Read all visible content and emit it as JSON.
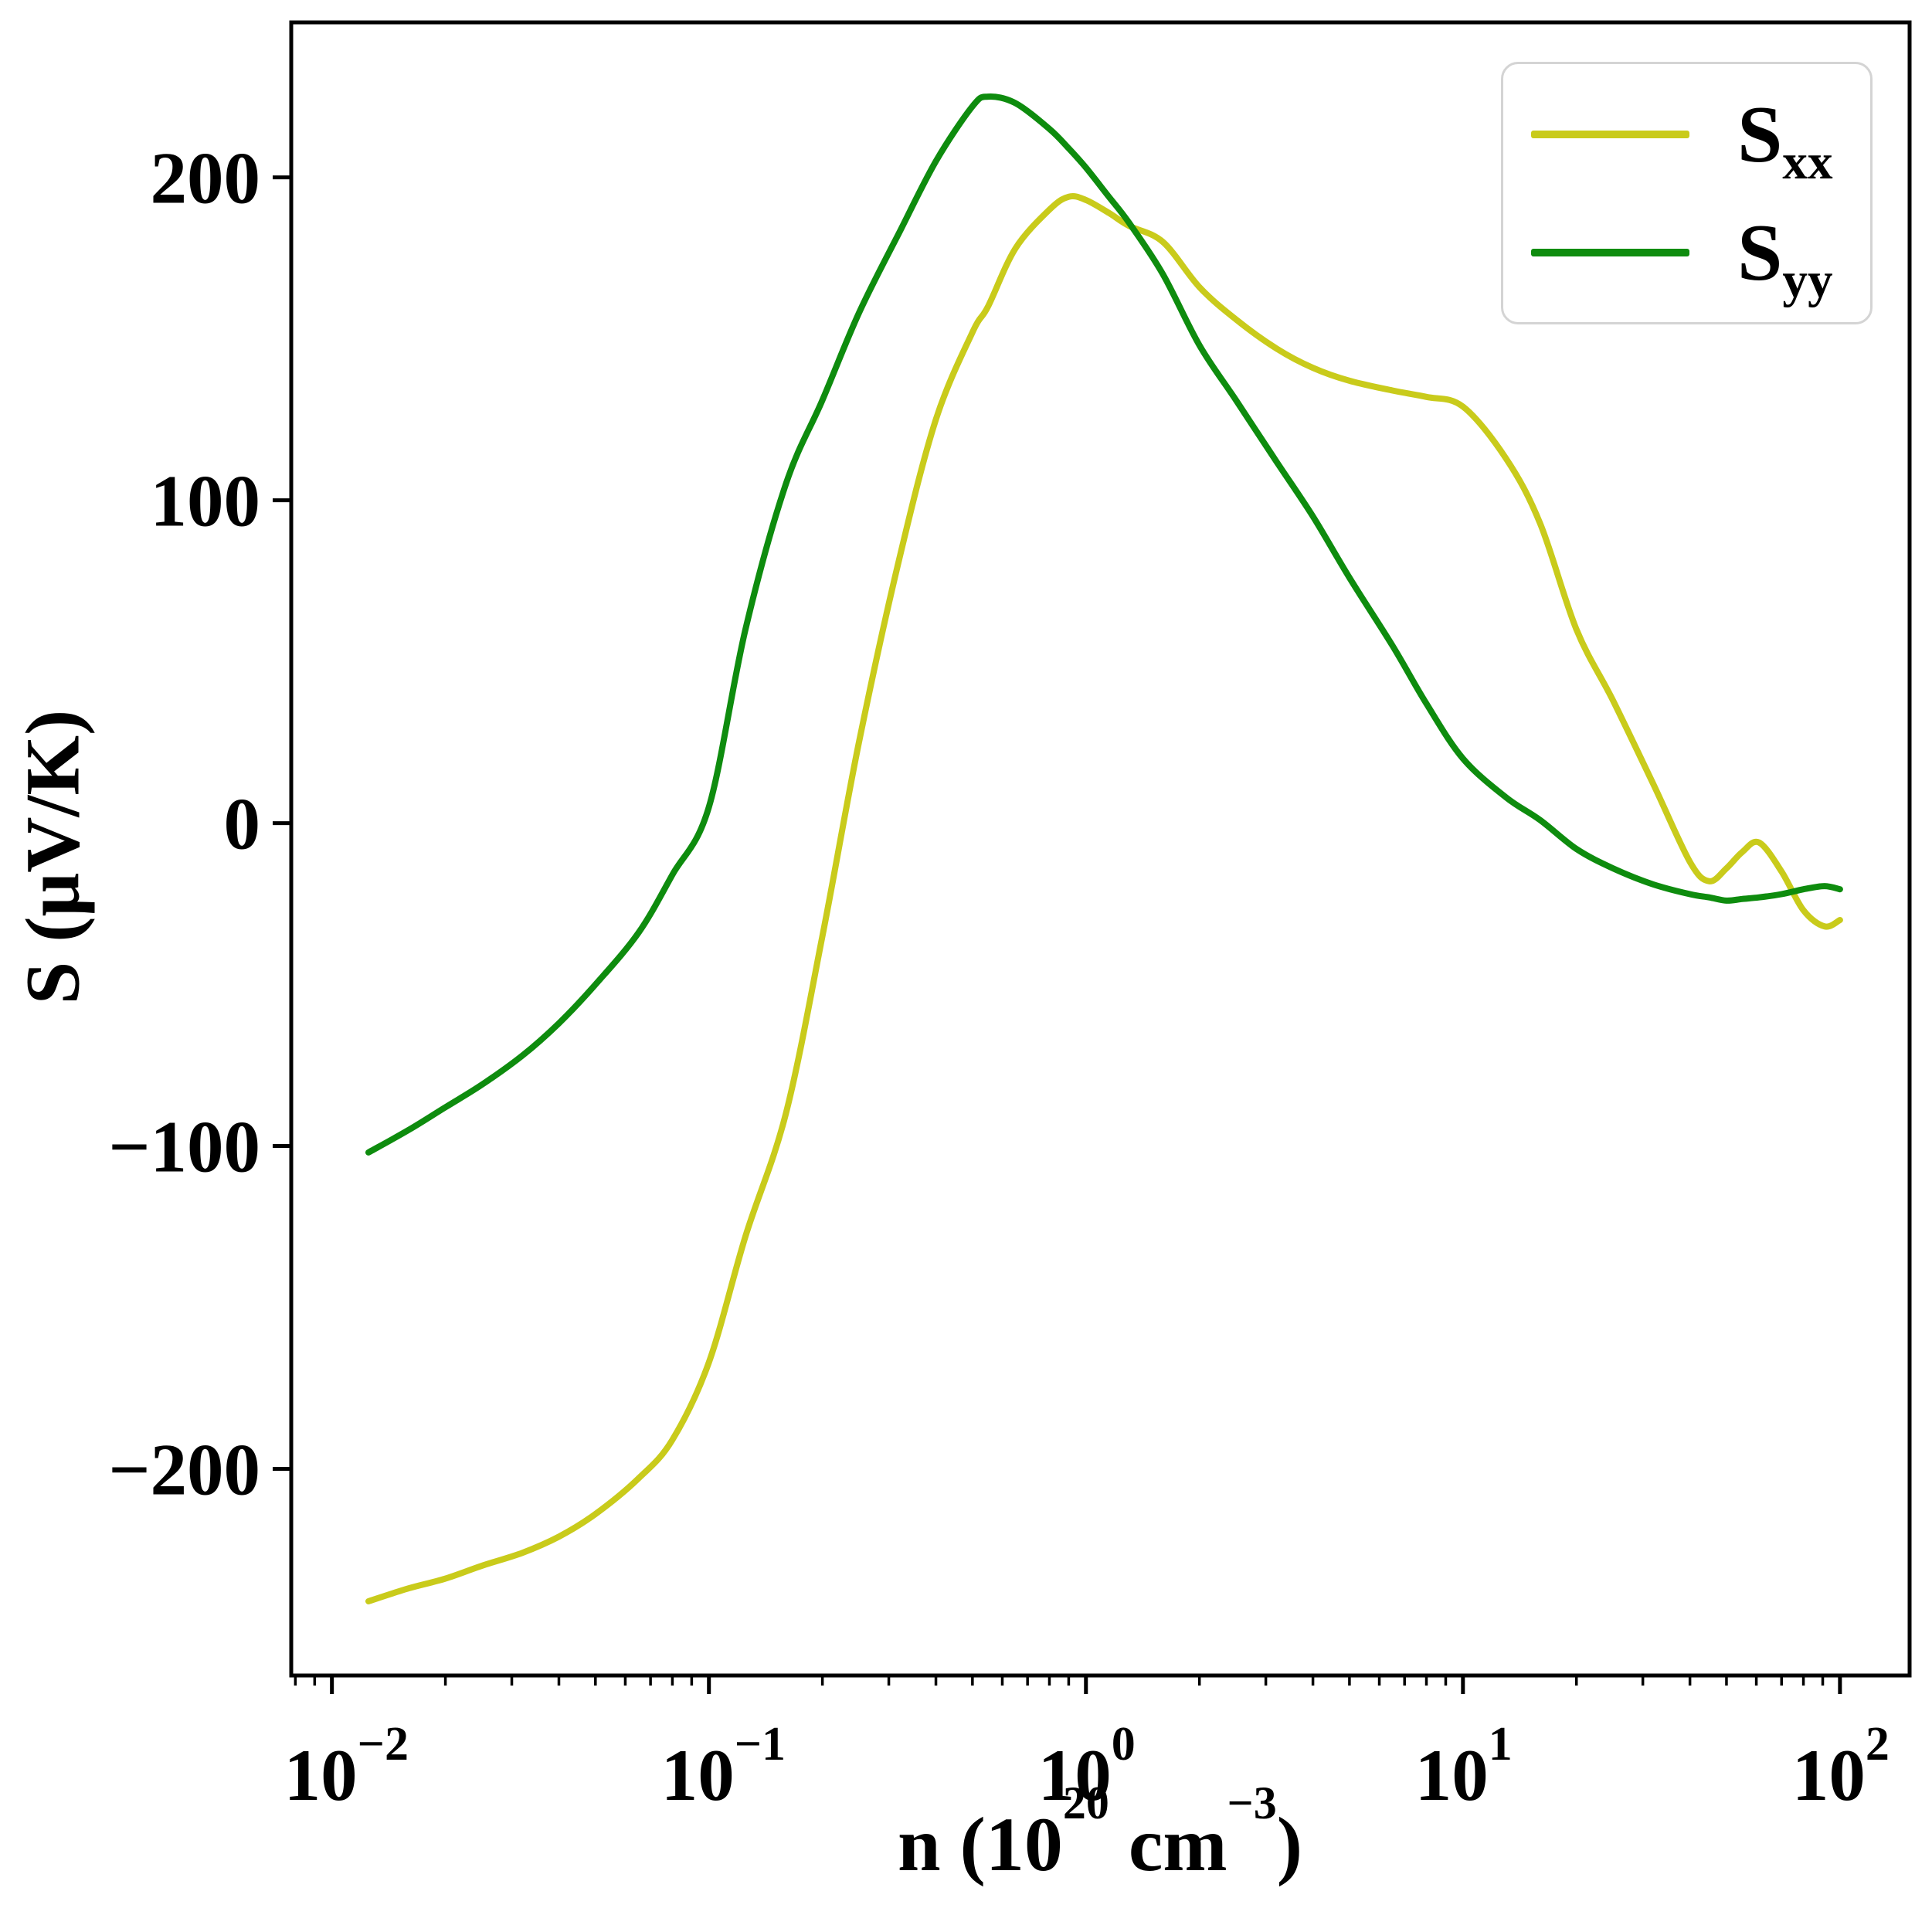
{
  "figure": {
    "ylabel": "S (μV/K)",
    "xlabel_parts": {
      "pre": "n (10",
      "sup1": "20",
      "mid": " cm",
      "sup2": "−3",
      "post": ")"
    }
  },
  "chart_data": {
    "type": "line",
    "title": "",
    "xscale": "log",
    "xlabel": "n (10^20 cm^-3)",
    "ylabel": "S (μV/K)",
    "xlim": [
      0.0078,
      153
    ],
    "ylim": [
      -264,
      248
    ],
    "grid": false,
    "legend_position": "upper right",
    "x": [
      0.0125,
      0.016,
      0.02,
      0.025,
      0.032,
      0.04,
      0.05,
      0.065,
      0.08,
      0.1,
      0.125,
      0.16,
      0.2,
      0.25,
      0.32,
      0.4,
      0.5,
      0.55,
      0.65,
      0.8,
      0.9,
      1.0,
      1.15,
      1.3,
      1.6,
      2.0,
      2.5,
      3.2,
      4.0,
      5.0,
      6.5,
      8.0,
      10,
      13,
      16,
      20,
      25,
      32,
      40,
      45,
      50,
      55,
      61,
      70,
      80,
      91,
      100
    ],
    "series": [
      {
        "name": "S_xx",
        "label_base": "S",
        "label_sub": "xx",
        "color": "#c9cb1b",
        "values": [
          -241,
          -237,
          -234,
          -230,
          -226,
          -221,
          -214,
          -203,
          -191,
          -167,
          -128,
          -90,
          -35,
          25,
          82,
          125,
          152,
          160,
          178,
          190,
          194,
          193,
          189,
          185,
          180,
          166,
          156,
          147,
          141,
          137,
          134,
          132,
          129,
          113,
          93,
          60,
          38,
          12,
          -12,
          -18,
          -14,
          -9,
          -6,
          -15,
          -27,
          -32,
          -30
        ]
      },
      {
        "name": "S_yy",
        "label_base": "S",
        "label_sub": "yy",
        "color": "#0e8c0e",
        "values": [
          -102,
          -95,
          -88,
          -81,
          -72,
          -62,
          -50,
          -34,
          -16,
          5,
          60,
          105,
          131,
          158,
          183,
          205,
          222,
          225,
          223,
          215,
          209,
          203,
          194,
          186,
          170,
          148,
          131,
          112,
          95,
          76,
          55,
          37,
          20,
          8,
          1,
          -8,
          -14,
          -19,
          -22,
          -23,
          -24,
          -23.5,
          -23,
          -22,
          -20.5,
          -19.5,
          -20.5
        ]
      }
    ],
    "axes": {
      "x": {
        "tick_label_base": "10",
        "major_exponents": [
          -2,
          -1,
          0,
          1,
          2
        ],
        "major_exponent_labels": [
          "−2",
          "−1",
          "0",
          "1",
          "2"
        ],
        "minor_ticks": [
          0.008,
          0.009,
          0.02,
          0.03,
          0.04,
          0.05,
          0.06,
          0.07,
          0.08,
          0.09,
          0.2,
          0.3,
          0.4,
          0.5,
          0.6,
          0.7,
          0.8,
          0.9,
          2,
          3,
          4,
          5,
          6,
          7,
          8,
          9,
          20,
          30,
          40,
          50,
          60,
          70,
          80,
          90
        ]
      },
      "y": {
        "ticks": [
          {
            "value": 200,
            "label": "200"
          },
          {
            "value": 100,
            "label": "100"
          },
          {
            "value": 0,
            "label": "0"
          },
          {
            "value": -100,
            "label": "−100"
          },
          {
            "value": -200,
            "label": "−200"
          }
        ]
      }
    }
  }
}
